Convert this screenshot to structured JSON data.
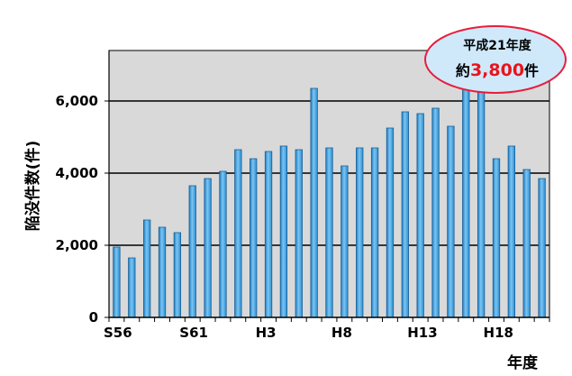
{
  "chart_data": {
    "type": "bar",
    "ylabel": "陥没件数(件)",
    "xlabel": "年度",
    "ylim": [
      0,
      7400
    ],
    "yticks": [
      0,
      2000,
      4000,
      6000
    ],
    "ytick_labels": [
      "0",
      "2,000",
      "4,000",
      "6,000"
    ],
    "xtick_labels": [
      {
        "index": 0,
        "label": "S56"
      },
      {
        "index": 5,
        "label": "S61"
      },
      {
        "index": 10,
        "label": "H3"
      },
      {
        "index": 15,
        "label": "H8"
      },
      {
        "index": 20,
        "label": "H13"
      },
      {
        "index": 25,
        "label": "H18"
      }
    ],
    "values": [
      1950,
      1650,
      2700,
      2500,
      2350,
      3650,
      3850,
      4050,
      4650,
      4400,
      4600,
      4750,
      4650,
      6350,
      4700,
      4200,
      4700,
      4700,
      5250,
      5700,
      5650,
      5800,
      5300,
      6500,
      6500,
      4400,
      4750,
      4100,
      3850
    ],
    "grid": "horizontal",
    "bar_color": "#3c9edc",
    "plot_background": "#d9d9d9",
    "annotation": {
      "line1": "平成21年度",
      "prefix": "約",
      "value": "3,800",
      "suffix": "件",
      "value_color": "#e8141e",
      "fill": "#cfe9fb",
      "border": "#e81e3c"
    }
  }
}
